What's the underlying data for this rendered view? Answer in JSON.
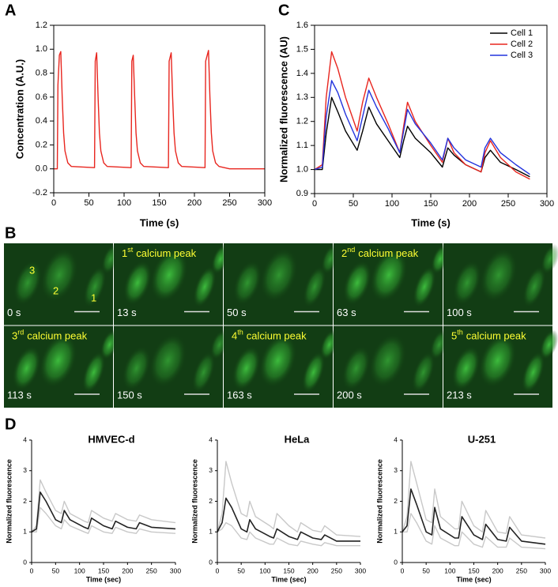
{
  "panel_labels": [
    "A",
    "B",
    "C",
    "D"
  ],
  "image_grid": {
    "cell_numbers": [
      "3",
      "2",
      "1"
    ],
    "cells": [
      {
        "time": "0 s"
      },
      {
        "time": "13 s",
        "caption": {
          "number": "1",
          "sup": "st",
          "text": "calcium peak"
        }
      },
      {
        "time": "50 s"
      },
      {
        "time": "63 s",
        "caption": {
          "number": "2",
          "sup": "nd",
          "text": "calcium peak"
        }
      },
      {
        "time": "100 s"
      },
      {
        "time": "113 s",
        "caption": {
          "number": "3",
          "sup": "rd",
          "text": "calcium peak"
        }
      },
      {
        "time": "150 s"
      },
      {
        "time": "163 s",
        "caption": {
          "number": "4",
          "sup": "th",
          "text": "calcium peak"
        }
      },
      {
        "time": "200 s"
      },
      {
        "time": "213 s",
        "caption": {
          "number": "5",
          "sup": "th",
          "text": "calcium peak"
        }
      }
    ]
  },
  "chart_data": [
    {
      "type": "line",
      "x_label": "Time (s)",
      "y_label": "Concentration (A.U.)",
      "xlim": [
        0,
        300
      ],
      "xticks": [
        0,
        50,
        100,
        150,
        200,
        250,
        300
      ],
      "ylim": [
        -0.2,
        1.2
      ],
      "yticks": [
        -0.2,
        {
          "value": 0,
          "label": "0.0"
        },
        0.2,
        0.4,
        0.6,
        0.8,
        {
          "value": 1,
          "label": "1.0"
        },
        1.2
      ],
      "x": [
        0,
        5,
        6,
        8,
        10,
        12,
        14,
        16,
        20,
        25,
        58,
        59,
        61,
        63,
        65,
        67,
        71,
        76,
        110,
        111,
        113,
        115,
        117,
        119,
        123,
        128,
        163,
        164,
        167,
        169,
        171,
        173,
        177,
        182,
        215,
        216,
        220,
        222,
        224,
        226,
        230,
        235,
        250,
        300
      ],
      "series": [
        {
          "color": "#e8261f",
          "values": [
            0,
            0,
            0.7,
            0.95,
            0.98,
            0.6,
            0.3,
            0.15,
            0.05,
            0.02,
            0.01,
            0.9,
            0.97,
            0.6,
            0.3,
            0.15,
            0.05,
            0.02,
            0.01,
            0.9,
            0.95,
            0.6,
            0.3,
            0.15,
            0.05,
            0.02,
            0.01,
            0.9,
            0.97,
            0.6,
            0.3,
            0.15,
            0.05,
            0.02,
            0.01,
            0.9,
            0.99,
            0.6,
            0.3,
            0.15,
            0.05,
            0.02,
            0,
            0
          ]
        }
      ]
    },
    {
      "type": "line",
      "x_label": "Time (s)",
      "y_label": "Normalized fluorescence (AU)",
      "legend": "upper right",
      "xlim": [
        0,
        300
      ],
      "xticks": [
        0,
        50,
        100,
        150,
        200,
        250,
        300
      ],
      "ylim": [
        0.9,
        1.6
      ],
      "yticks": [
        0.9,
        {
          "value": 1,
          "label": "1.0"
        },
        1.1,
        1.2,
        1.3,
        1.4,
        1.5,
        1.6
      ],
      "x": [
        0,
        10,
        15,
        22,
        30,
        40,
        55,
        62,
        70,
        80,
        95,
        110,
        115,
        120,
        130,
        150,
        165,
        172,
        180,
        195,
        215,
        220,
        227,
        240,
        260,
        278
      ],
      "series": [
        {
          "name": "Cell 1",
          "color": "#000000",
          "values": [
            1.0,
            1.0,
            1.15,
            1.3,
            1.24,
            1.16,
            1.08,
            1.16,
            1.26,
            1.19,
            1.12,
            1.05,
            1.12,
            1.18,
            1.13,
            1.07,
            1.01,
            1.09,
            1.06,
            1.02,
            0.99,
            1.05,
            1.08,
            1.03,
            1.0,
            0.97
          ]
        },
        {
          "name": "Cell 2",
          "color": "#e8261f",
          "values": [
            1.0,
            1.02,
            1.3,
            1.49,
            1.42,
            1.3,
            1.16,
            1.28,
            1.38,
            1.3,
            1.19,
            1.07,
            1.18,
            1.28,
            1.2,
            1.1,
            1.03,
            1.13,
            1.07,
            1.02,
            0.99,
            1.07,
            1.12,
            1.05,
            0.99,
            0.96
          ]
        },
        {
          "name": "Cell 3",
          "color": "#2233dd",
          "values": [
            1.0,
            1.01,
            1.22,
            1.37,
            1.32,
            1.23,
            1.12,
            1.22,
            1.33,
            1.26,
            1.17,
            1.07,
            1.16,
            1.25,
            1.19,
            1.11,
            1.04,
            1.13,
            1.09,
            1.04,
            1.01,
            1.09,
            1.13,
            1.07,
            1.02,
            0.98
          ]
        }
      ]
    },
    {
      "type": "line",
      "title": "HMVEC-d",
      "x_label": "Time (sec)",
      "y_label": "Normalized fluorescence",
      "xlim": [
        0,
        300
      ],
      "xticks": [
        0,
        50,
        100,
        150,
        200,
        250,
        300
      ],
      "ylim": [
        0,
        4
      ],
      "yticks": [
        0,
        1,
        2,
        3,
        4
      ],
      "x": [
        0,
        10,
        18,
        30,
        50,
        62,
        68,
        80,
        110,
        118,
        125,
        150,
        168,
        175,
        200,
        218,
        225,
        250,
        300
      ],
      "series": [
        {
          "color": "#c8c8c8",
          "values": [
            1,
            1.2,
            2.7,
            2.3,
            1.7,
            1.6,
            2.0,
            1.6,
            1.35,
            1.3,
            1.7,
            1.45,
            1.35,
            1.6,
            1.4,
            1.35,
            1.55,
            1.4,
            1.3
          ]
        },
        {
          "color": "#c8c8c8",
          "values": [
            1,
            1.0,
            1.8,
            1.6,
            1.2,
            1.1,
            1.4,
            1.2,
            1.0,
            0.95,
            1.2,
            1.0,
            0.95,
            1.15,
            1.0,
            0.95,
            1.1,
            1.0,
            0.95
          ]
        },
        {
          "color": "#222222",
          "values": [
            1,
            1.1,
            2.3,
            2.0,
            1.4,
            1.3,
            1.7,
            1.4,
            1.15,
            1.1,
            1.45,
            1.2,
            1.1,
            1.35,
            1.15,
            1.1,
            1.3,
            1.15,
            1.1
          ]
        }
      ]
    },
    {
      "type": "line",
      "title": "HeLa",
      "x_label": "Time (sec)",
      "y_label": "Normalized fluorescence",
      "xlim": [
        0,
        300
      ],
      "xticks": [
        0,
        50,
        100,
        150,
        200,
        250,
        300
      ],
      "ylim": [
        0,
        4
      ],
      "yticks": [
        0,
        1,
        2,
        3,
        4
      ],
      "x": [
        0,
        10,
        18,
        30,
        50,
        62,
        68,
        80,
        110,
        118,
        125,
        150,
        168,
        175,
        200,
        218,
        225,
        250,
        300
      ],
      "series": [
        {
          "color": "#c8c8c8",
          "values": [
            1,
            1.6,
            3.3,
            2.6,
            1.6,
            1.5,
            2.0,
            1.5,
            1.2,
            1.1,
            1.6,
            1.2,
            1.0,
            1.3,
            1.05,
            1.0,
            1.2,
            0.9,
            0.85
          ]
        },
        {
          "color": "#c8c8c8",
          "values": [
            1,
            1.1,
            1.3,
            1.2,
            0.8,
            0.75,
            1.0,
            0.8,
            0.6,
            0.6,
            0.8,
            0.6,
            0.55,
            0.7,
            0.6,
            0.55,
            0.65,
            0.55,
            0.55
          ]
        },
        {
          "color": "#222222",
          "values": [
            1,
            1.3,
            2.1,
            1.8,
            1.1,
            1.0,
            1.4,
            1.1,
            0.85,
            0.8,
            1.1,
            0.85,
            0.75,
            1.0,
            0.8,
            0.75,
            0.9,
            0.7,
            0.7
          ]
        }
      ]
    },
    {
      "type": "line",
      "title": "U-251",
      "x_label": "Time (sec)",
      "y_label": "Normalized fluorescence",
      "xlim": [
        0,
        300
      ],
      "xticks": [
        0,
        50,
        100,
        150,
        200,
        250,
        300
      ],
      "ylim": [
        0,
        4
      ],
      "yticks": [
        0,
        1,
        2,
        3,
        4
      ],
      "x": [
        0,
        10,
        18,
        30,
        50,
        62,
        68,
        80,
        110,
        118,
        125,
        150,
        168,
        175,
        200,
        218,
        225,
        250,
        300
      ],
      "series": [
        {
          "color": "#c8c8c8",
          "values": [
            1,
            1.5,
            3.3,
            2.6,
            1.4,
            1.3,
            2.4,
            1.5,
            1.1,
            1.1,
            2.0,
            1.2,
            1.0,
            1.7,
            1.0,
            0.95,
            1.5,
            0.9,
            0.8
          ]
        },
        {
          "color": "#c8c8c8",
          "values": [
            1,
            1.0,
            1.6,
            1.3,
            0.7,
            0.6,
            1.2,
            0.8,
            0.55,
            0.55,
            1.0,
            0.6,
            0.5,
            0.85,
            0.5,
            0.5,
            0.8,
            0.5,
            0.45
          ]
        },
        {
          "color": "#222222",
          "values": [
            1,
            1.2,
            2.4,
            1.9,
            1.0,
            0.9,
            1.8,
            1.1,
            0.8,
            0.8,
            1.5,
            0.9,
            0.75,
            1.25,
            0.75,
            0.7,
            1.15,
            0.7,
            0.6
          ]
        }
      ]
    }
  ]
}
